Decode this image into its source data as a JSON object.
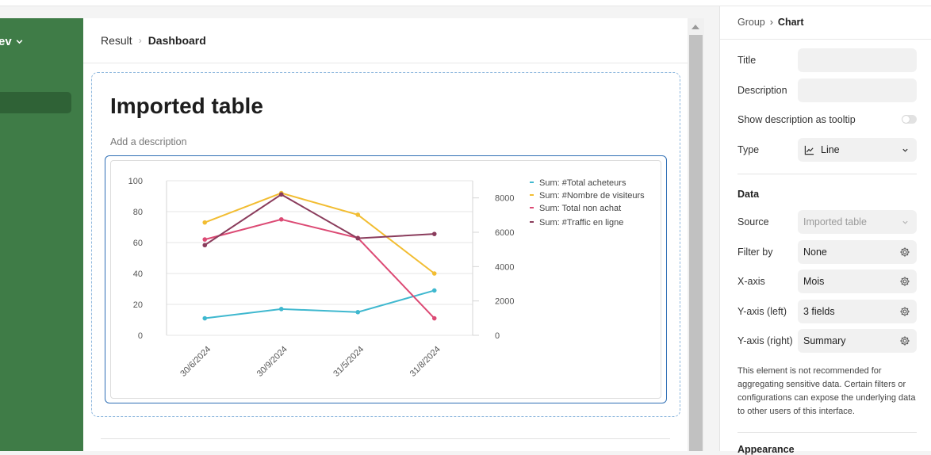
{
  "sidebar": {
    "workspace_label": "ev"
  },
  "breadcrumb": {
    "parent": "Result",
    "current": "Dashboard"
  },
  "element": {
    "title": "Imported table",
    "description_placeholder": "Add a description"
  },
  "chart_data": {
    "type": "line",
    "categories": [
      "30/6/2024",
      "30/9/2024",
      "31/5/2024",
      "31/8/2024"
    ],
    "y_left": {
      "ticks": [
        0,
        20,
        40,
        60,
        80,
        100
      ],
      "ylim": [
        0,
        100
      ]
    },
    "y_right": {
      "ticks": [
        0,
        2000,
        4000,
        6000,
        8000
      ],
      "ylim": [
        0,
        9000
      ]
    },
    "grid": true,
    "legend_position": "right",
    "series": [
      {
        "name": "Sum: #Total acheteurs",
        "color": "#3fb8cf",
        "axis": "left",
        "values": [
          11,
          17,
          15,
          29
        ]
      },
      {
        "name": "Sum: #Nombre de visiteurs",
        "color": "#f2bd32",
        "axis": "left",
        "values": [
          73,
          92,
          78,
          40
        ]
      },
      {
        "name": "Sum: Total non achat",
        "color": "#dc4a74",
        "axis": "left",
        "values": [
          62,
          75,
          63,
          11
        ]
      },
      {
        "name": "Sum: #Traffic en ligne",
        "color": "#8a3c5c",
        "axis": "right",
        "values": [
          5250,
          8200,
          5650,
          5900
        ]
      }
    ]
  },
  "panel": {
    "breadcrumb_parent": "Group",
    "breadcrumb_current": "Chart",
    "title_label": "Title",
    "title_value": "",
    "description_label": "Description",
    "description_value": "",
    "tooltip_label": "Show description as tooltip",
    "type_label": "Type",
    "type_value": "Line",
    "data_heading": "Data",
    "source_label": "Source",
    "source_value": "Imported table",
    "filter_label": "Filter by",
    "filter_value": "None",
    "xaxis_label": "X-axis",
    "xaxis_value": "Mois",
    "yleft_label": "Y-axis (left)",
    "yleft_value": "3 fields",
    "yright_label": "Y-axis (right)",
    "yright_value": "Summary",
    "note": "This element is not recommended for aggregating sensitive data. Certain filters or configurations can expose the underlying data to other users of this interface.",
    "appearance_heading": "Appearance"
  }
}
